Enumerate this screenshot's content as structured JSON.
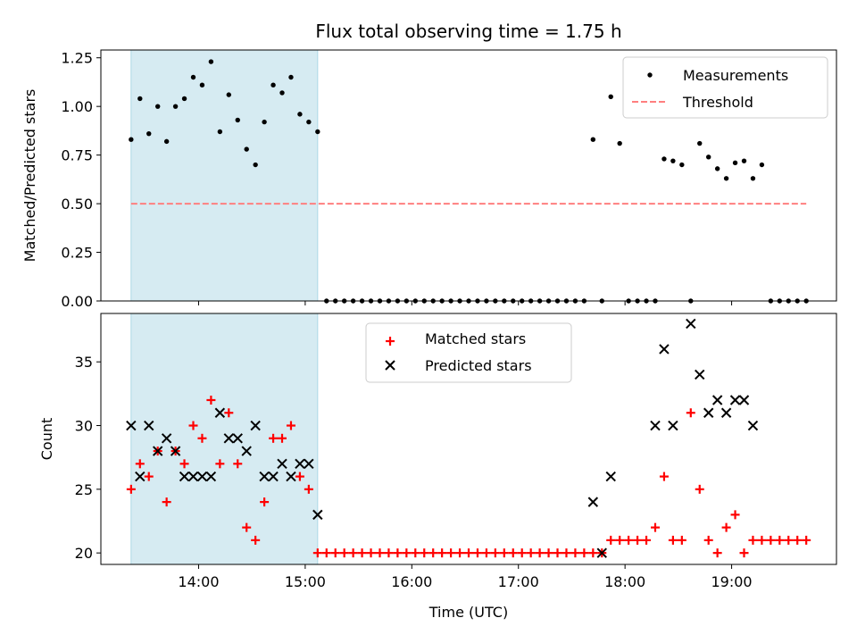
{
  "chart_data": [
    {
      "type": "scatter",
      "title": "Flux total observing time = 1.75 h",
      "xlabel": "",
      "ylabel": "Matched/Predicted stars",
      "ylim": [
        0,
        1.29
      ],
      "yticks": [
        "0.00",
        "0.25",
        "0.50",
        "0.75",
        "1.00",
        "1.25"
      ],
      "shaded_region": {
        "x_start": "13:22",
        "x_end": "15:07"
      },
      "legend": {
        "position": "top-right"
      },
      "series": [
        {
          "name": "Measurements",
          "marker": "dot",
          "color": "#000000",
          "points": [
            [
              "13:22",
              0.83
            ],
            [
              "13:27",
              1.04
            ],
            [
              "13:32",
              0.86
            ],
            [
              "13:37",
              1.0
            ],
            [
              "13:42",
              0.82
            ],
            [
              "13:47",
              1.0
            ],
            [
              "13:52",
              1.04
            ],
            [
              "13:57",
              1.15
            ],
            [
              "14:02",
              1.11
            ],
            [
              "14:07",
              1.23
            ],
            [
              "14:12",
              0.87
            ],
            [
              "14:17",
              1.06
            ],
            [
              "14:22",
              0.93
            ],
            [
              "14:27",
              0.78
            ],
            [
              "14:32",
              0.7
            ],
            [
              "14:37",
              0.92
            ],
            [
              "14:42",
              1.11
            ],
            [
              "14:47",
              1.07
            ],
            [
              "14:52",
              1.15
            ],
            [
              "14:57",
              0.96
            ],
            [
              "15:02",
              0.92
            ],
            [
              "15:07",
              0.87
            ],
            [
              "15:12",
              0
            ],
            [
              "15:17",
              0
            ],
            [
              "15:22",
              0
            ],
            [
              "15:27",
              0
            ],
            [
              "15:32",
              0
            ],
            [
              "15:37",
              0
            ],
            [
              "15:42",
              0
            ],
            [
              "15:47",
              0
            ],
            [
              "15:52",
              0
            ],
            [
              "15:57",
              0
            ],
            [
              "16:02",
              0
            ],
            [
              "16:07",
              0
            ],
            [
              "16:12",
              0
            ],
            [
              "16:17",
              0
            ],
            [
              "16:22",
              0
            ],
            [
              "16:27",
              0
            ],
            [
              "16:32",
              0
            ],
            [
              "16:37",
              0
            ],
            [
              "16:42",
              0
            ],
            [
              "16:47",
              0
            ],
            [
              "16:52",
              0
            ],
            [
              "16:57",
              0
            ],
            [
              "17:02",
              0
            ],
            [
              "17:07",
              0
            ],
            [
              "17:12",
              0
            ],
            [
              "17:17",
              0
            ],
            [
              "17:22",
              0
            ],
            [
              "17:27",
              0
            ],
            [
              "17:32",
              0
            ],
            [
              "17:37",
              0
            ],
            [
              "17:42",
              0.83
            ],
            [
              "17:47",
              0
            ],
            [
              "17:52",
              1.05
            ],
            [
              "17:57",
              0.81
            ],
            [
              "18:02",
              0
            ],
            [
              "18:07",
              0
            ],
            [
              "18:12",
              0
            ],
            [
              "18:17",
              0
            ],
            [
              "18:22",
              0.73
            ],
            [
              "18:27",
              0.72
            ],
            [
              "18:32",
              0.7
            ],
            [
              "18:37",
              0
            ],
            [
              "18:42",
              0.81
            ],
            [
              "18:47",
              0.74
            ],
            [
              "18:52",
              0.68
            ],
            [
              "18:57",
              0.63
            ],
            [
              "19:02",
              0.71
            ],
            [
              "19:07",
              0.72
            ],
            [
              "19:12",
              0.63
            ],
            [
              "19:17",
              0.7
            ],
            [
              "19:22",
              0
            ],
            [
              "19:27",
              0
            ],
            [
              "19:32",
              0
            ],
            [
              "19:37",
              0
            ],
            [
              "19:42",
              0
            ]
          ]
        },
        {
          "name": "Threshold",
          "marker": "dashed-line",
          "color": "#ff7f7f",
          "points": [
            [
              "13:22",
              0.5
            ],
            [
              "19:42",
              0.5
            ]
          ]
        }
      ]
    },
    {
      "type": "scatter",
      "title": "",
      "xlabel": "Time (UTC)",
      "ylabel": "Count",
      "ylim": [
        19.1,
        38.8
      ],
      "yticks": [
        "20",
        "25",
        "30",
        "35"
      ],
      "xticks": [
        "14:00",
        "15:00",
        "16:00",
        "17:00",
        "18:00",
        "19:00"
      ],
      "shaded_region": {
        "x_start": "13:22",
        "x_end": "15:07"
      },
      "legend": {
        "position": "top-center"
      },
      "series": [
        {
          "name": "Matched stars",
          "marker": "plus",
          "color": "#ff0000",
          "points": [
            [
              "13:22",
              25
            ],
            [
              "13:27",
              27
            ],
            [
              "13:32",
              26
            ],
            [
              "13:37",
              28
            ],
            [
              "13:42",
              24
            ],
            [
              "13:47",
              28
            ],
            [
              "13:52",
              27
            ],
            [
              "13:57",
              30
            ],
            [
              "14:02",
              29
            ],
            [
              "14:07",
              32
            ],
            [
              "14:12",
              27
            ],
            [
              "14:17",
              31
            ],
            [
              "14:22",
              27
            ],
            [
              "14:27",
              22
            ],
            [
              "14:32",
              21
            ],
            [
              "14:37",
              24
            ],
            [
              "14:42",
              29
            ],
            [
              "14:47",
              29
            ],
            [
              "14:52",
              30
            ],
            [
              "14:57",
              26
            ],
            [
              "15:02",
              25
            ],
            [
              "15:07",
              20
            ],
            [
              "15:12",
              20
            ],
            [
              "15:17",
              20
            ],
            [
              "15:22",
              20
            ],
            [
              "15:27",
              20
            ],
            [
              "15:32",
              20
            ],
            [
              "15:37",
              20
            ],
            [
              "15:42",
              20
            ],
            [
              "15:47",
              20
            ],
            [
              "15:52",
              20
            ],
            [
              "15:57",
              20
            ],
            [
              "16:02",
              20
            ],
            [
              "16:07",
              20
            ],
            [
              "16:12",
              20
            ],
            [
              "16:17",
              20
            ],
            [
              "16:22",
              20
            ],
            [
              "16:27",
              20
            ],
            [
              "16:32",
              20
            ],
            [
              "16:37",
              20
            ],
            [
              "16:42",
              20
            ],
            [
              "16:47",
              20
            ],
            [
              "16:52",
              20
            ],
            [
              "16:57",
              20
            ],
            [
              "17:02",
              20
            ],
            [
              "17:07",
              20
            ],
            [
              "17:12",
              20
            ],
            [
              "17:17",
              20
            ],
            [
              "17:22",
              20
            ],
            [
              "17:27",
              20
            ],
            [
              "17:32",
              20
            ],
            [
              "17:37",
              20
            ],
            [
              "17:42",
              20
            ],
            [
              "17:47",
              20
            ],
            [
              "17:52",
              21
            ],
            [
              "17:57",
              21
            ],
            [
              "18:02",
              21
            ],
            [
              "18:07",
              21
            ],
            [
              "18:12",
              21
            ],
            [
              "18:17",
              22
            ],
            [
              "18:22",
              26
            ],
            [
              "18:27",
              21
            ],
            [
              "18:32",
              21
            ],
            [
              "18:37",
              31
            ],
            [
              "18:42",
              25
            ],
            [
              "18:47",
              21
            ],
            [
              "18:52",
              20
            ],
            [
              "18:57",
              22
            ],
            [
              "19:02",
              23
            ],
            [
              "19:07",
              20
            ],
            [
              "19:12",
              21
            ],
            [
              "19:17",
              21
            ],
            [
              "19:22",
              21
            ],
            [
              "19:27",
              21
            ],
            [
              "19:32",
              21
            ],
            [
              "19:37",
              21
            ],
            [
              "19:42",
              21
            ]
          ]
        },
        {
          "name": "Predicted stars",
          "marker": "x",
          "color": "#000000",
          "points": [
            [
              "13:22",
              30
            ],
            [
              "13:27",
              26
            ],
            [
              "13:32",
              30
            ],
            [
              "13:37",
              28
            ],
            [
              "13:42",
              29
            ],
            [
              "13:47",
              28
            ],
            [
              "13:52",
              26
            ],
            [
              "13:57",
              26
            ],
            [
              "14:02",
              26
            ],
            [
              "14:07",
              26
            ],
            [
              "14:12",
              31
            ],
            [
              "14:17",
              29
            ],
            [
              "14:22",
              29
            ],
            [
              "14:27",
              28
            ],
            [
              "14:32",
              30
            ],
            [
              "14:37",
              26
            ],
            [
              "14:42",
              26
            ],
            [
              "14:47",
              27
            ],
            [
              "14:52",
              26
            ],
            [
              "14:57",
              27
            ],
            [
              "15:02",
              27
            ],
            [
              "15:07",
              23
            ],
            [
              "17:42",
              24
            ],
            [
              "17:47",
              20
            ],
            [
              "17:52",
              26
            ],
            [
              "18:17",
              30
            ],
            [
              "18:22",
              36
            ],
            [
              "18:27",
              30
            ],
            [
              "18:37",
              38
            ],
            [
              "18:42",
              34
            ],
            [
              "18:47",
              31
            ],
            [
              "18:52",
              32
            ],
            [
              "18:57",
              31
            ],
            [
              "19:02",
              32
            ],
            [
              "19:07",
              32
            ],
            [
              "19:12",
              30
            ]
          ]
        }
      ]
    }
  ]
}
